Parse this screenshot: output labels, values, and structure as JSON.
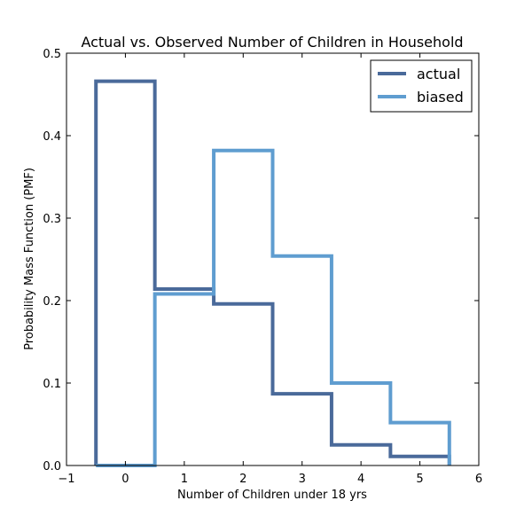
{
  "chart_data": {
    "type": "line",
    "title": "Actual vs. Observed Number of Children in Household",
    "xlabel": "Number of Children under 18 yrs",
    "ylabel": "Probability Mass Function (PMF)",
    "xlim": [
      -1,
      6
    ],
    "ylim": [
      0,
      0.5
    ],
    "x_ticks": [
      -1,
      0,
      1,
      2,
      3,
      4,
      5,
      6
    ],
    "y_ticks": [
      0.0,
      0.1,
      0.2,
      0.3,
      0.4,
      0.5
    ],
    "x_tick_labels": [
      "−1",
      "0",
      "1",
      "2",
      "3",
      "4",
      "5",
      "6"
    ],
    "y_tick_labels": [
      "0.0",
      "0.1",
      "0.2",
      "0.3",
      "0.4",
      "0.5"
    ],
    "categories": [
      0,
      1,
      2,
      3,
      4,
      5
    ],
    "step_style": "pmf-step",
    "legend": {
      "position": "top-right"
    },
    "series": [
      {
        "name": "actual",
        "color": "#4a6a9a",
        "values": [
          0.466,
          0.214,
          0.196,
          0.087,
          0.025,
          0.011
        ]
      },
      {
        "name": "biased",
        "color": "#5f9dd0",
        "values": [
          0.0,
          0.208,
          0.382,
          0.254,
          0.1,
          0.052
        ]
      }
    ],
    "grid": false
  }
}
